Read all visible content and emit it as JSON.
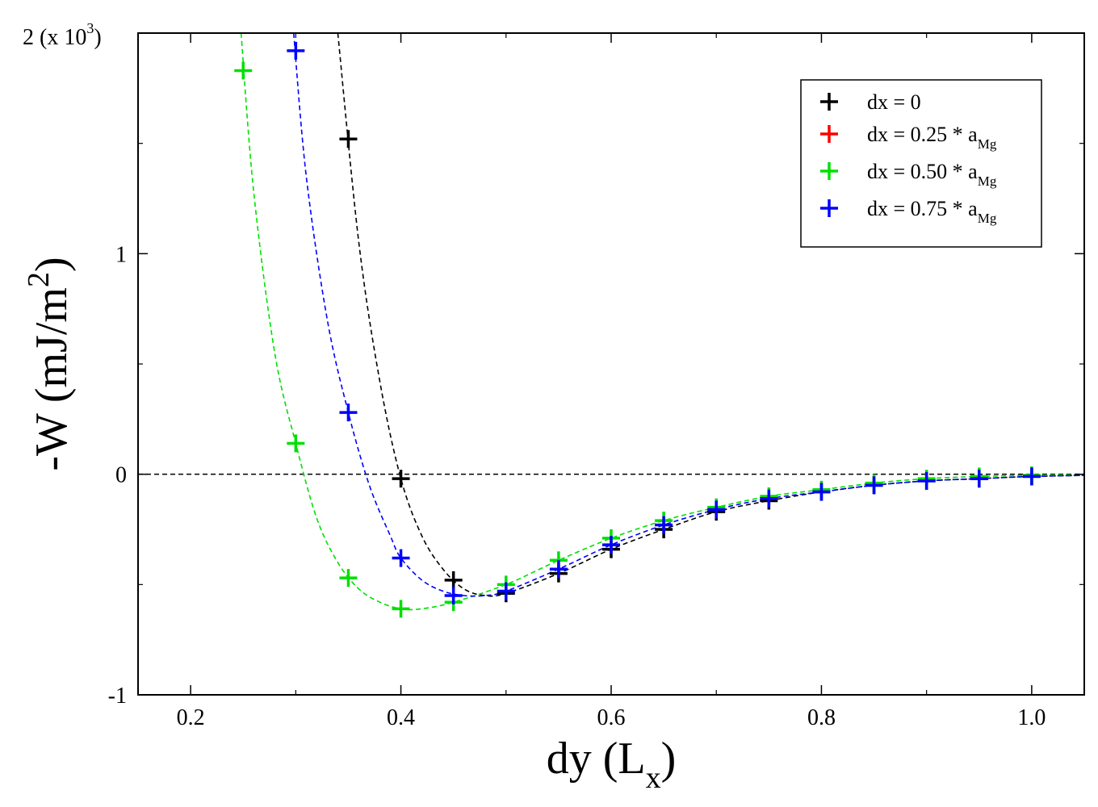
{
  "chart_data": {
    "type": "scatter",
    "title": "",
    "xlabel": "dy (L",
    "xlabel_sub": "x",
    "xlabel_close": ")",
    "ylabel": "-W (mJ/m",
    "ylabel_sup": "2",
    "ylabel_close": ")",
    "y_scale_note": "(x 10",
    "y_scale_note_exp": "3",
    "y_scale_note_close": ")",
    "xlim": [
      0.15,
      1.05
    ],
    "ylim": [
      -1,
      2
    ],
    "x_ticks": [
      0.2,
      0.4,
      0.6,
      0.8,
      1.0
    ],
    "x_tick_labels": [
      "0.2",
      "0.4",
      "0.6",
      "0.8",
      "1.0"
    ],
    "y_ticks": [
      -1,
      0,
      1,
      2
    ],
    "y_tick_labels": [
      "-1",
      "0",
      "1",
      "2"
    ],
    "reference_line_y": 0,
    "legend_position": "top-right",
    "series": [
      {
        "name": "dx = 0",
        "name_sub": "",
        "color": "#000000",
        "x": [
          0.35,
          0.4,
          0.45,
          0.5,
          0.55,
          0.6,
          0.65,
          0.7,
          0.75,
          0.8,
          0.85,
          0.9,
          0.95,
          1.0
        ],
        "y": [
          1.52,
          -0.02,
          -0.48,
          -0.54,
          -0.45,
          -0.34,
          -0.25,
          -0.17,
          -0.12,
          -0.08,
          -0.05,
          -0.03,
          -0.02,
          -0.01
        ],
        "fit_x": [
          0.34,
          0.36,
          0.38,
          0.4,
          0.42,
          0.44,
          0.46,
          0.48,
          0.5,
          0.55,
          0.6,
          0.65,
          0.7,
          0.75,
          0.8,
          0.85,
          0.9,
          0.95,
          1.0,
          1.05
        ],
        "fit_y": [
          2.0,
          1.05,
          0.42,
          -0.02,
          -0.28,
          -0.43,
          -0.52,
          -0.55,
          -0.54,
          -0.45,
          -0.34,
          -0.25,
          -0.17,
          -0.12,
          -0.08,
          -0.05,
          -0.03,
          -0.02,
          -0.01,
          -0.005
        ]
      },
      {
        "name": "dx = 0.25 * a",
        "name_sub": "Mg",
        "color": "#ff0000",
        "x": [],
        "y": [],
        "fit_x": [],
        "fit_y": []
      },
      {
        "name": "dx = 0.50 * a",
        "name_sub": "Mg",
        "color": "#00e000",
        "x": [
          0.25,
          0.3,
          0.35,
          0.4,
          0.45,
          0.5,
          0.55,
          0.6,
          0.65,
          0.7,
          0.75,
          0.8,
          0.85,
          0.9,
          0.95,
          1.0
        ],
        "y": [
          1.83,
          0.14,
          -0.47,
          -0.61,
          -0.58,
          -0.5,
          -0.39,
          -0.29,
          -0.21,
          -0.15,
          -0.1,
          -0.07,
          -0.04,
          -0.02,
          -0.01,
          -0.005
        ],
        "fit_x": [
          0.248,
          0.26,
          0.28,
          0.3,
          0.32,
          0.34,
          0.36,
          0.38,
          0.4,
          0.42,
          0.45,
          0.5,
          0.55,
          0.6,
          0.65,
          0.7,
          0.75,
          0.8,
          0.85,
          0.9,
          0.95,
          1.0,
          1.05
        ],
        "fit_y": [
          2.0,
          1.28,
          0.55,
          0.14,
          -0.2,
          -0.4,
          -0.52,
          -0.58,
          -0.61,
          -0.61,
          -0.58,
          -0.5,
          -0.39,
          -0.29,
          -0.21,
          -0.15,
          -0.1,
          -0.07,
          -0.04,
          -0.02,
          -0.01,
          -0.005,
          -0.002
        ]
      },
      {
        "name": "dx = 0.75 * a",
        "name_sub": "Mg",
        "color": "#0000ff",
        "x": [
          0.3,
          0.35,
          0.4,
          0.45,
          0.5,
          0.55,
          0.6,
          0.65,
          0.7,
          0.75,
          0.8,
          0.85,
          0.9,
          0.95,
          1.0
        ],
        "y": [
          1.92,
          0.28,
          -0.38,
          -0.55,
          -0.53,
          -0.43,
          -0.32,
          -0.23,
          -0.16,
          -0.11,
          -0.08,
          -0.05,
          -0.03,
          -0.02,
          -0.01
        ],
        "fit_x": [
          0.298,
          0.31,
          0.33,
          0.35,
          0.37,
          0.39,
          0.4,
          0.42,
          0.44,
          0.46,
          0.48,
          0.5,
          0.55,
          0.6,
          0.65,
          0.7,
          0.75,
          0.8,
          0.85,
          0.9,
          0.95,
          1.0,
          1.05
        ],
        "fit_y": [
          2.0,
          1.35,
          0.7,
          0.28,
          -0.05,
          -0.28,
          -0.38,
          -0.48,
          -0.53,
          -0.55,
          -0.55,
          -0.53,
          -0.43,
          -0.32,
          -0.23,
          -0.16,
          -0.11,
          -0.08,
          -0.05,
          -0.03,
          -0.02,
          -0.01,
          -0.005
        ]
      }
    ]
  }
}
